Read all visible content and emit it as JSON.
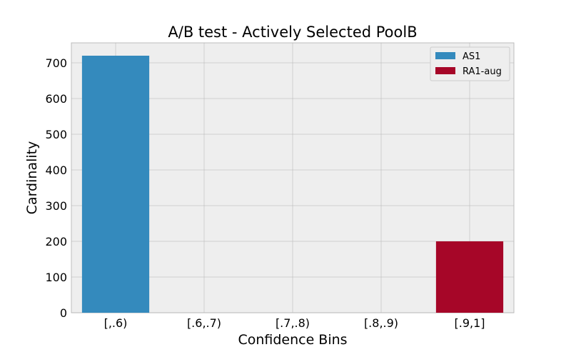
{
  "chart_data": {
    "type": "bar",
    "title": "A/B test - Actively Selected PoolB",
    "xlabel": "Confidence Bins",
    "ylabel": "Cardinality",
    "categories": [
      "[,.6)",
      "[.6,.7)",
      "[.7,.8)",
      "[.8,.9)",
      "[.9,1]"
    ],
    "series": [
      {
        "name": "AS1",
        "color": "#348ABD",
        "values": [
          720,
          0,
          0,
          0,
          0
        ]
      },
      {
        "name": "RA1-aug",
        "color": "#A60628",
        "values": [
          0,
          0,
          0,
          0,
          200
        ]
      }
    ],
    "ylim": [
      0,
      756
    ],
    "yticks": [
      0,
      100,
      200,
      300,
      400,
      500,
      600,
      700
    ],
    "grid": true,
    "legend": "top-right",
    "plot_background": "#EEEEEE"
  }
}
